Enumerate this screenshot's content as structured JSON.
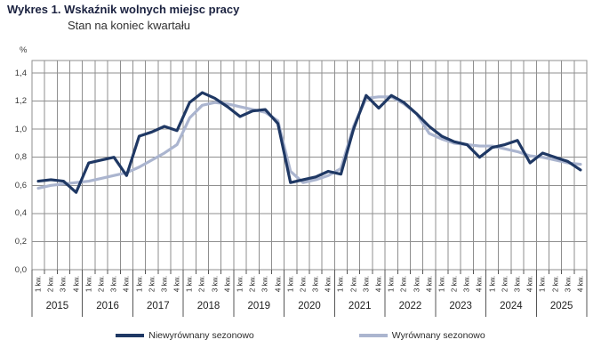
{
  "header": {
    "title": "Wykres 1. Wskaźnik wolnych miejsc pracy",
    "subtitle": "Stan na koniec kwartału"
  },
  "chart_data": {
    "type": "line",
    "unit_label": "%",
    "title": "Wykres 1. Wskaźnik wolnych miejsc pracy",
    "subtitle": "Stan na koniec kwartału",
    "ylim": [
      0,
      1.4
    ],
    "grid": true,
    "legend_position": "bottom",
    "y_ticks": [
      "0,0",
      "0,2",
      "0,4",
      "0,6",
      "0,8",
      "1,0",
      "1,2",
      "1,4"
    ],
    "years": [
      "2015",
      "2016",
      "2017",
      "2018",
      "2019",
      "2020",
      "2021",
      "2022",
      "2023",
      "2024",
      "2025"
    ],
    "quarter_labels": [
      "1 kw.",
      "2 kw.",
      "3 kw.",
      "4 kw."
    ],
    "series": [
      {
        "name": "Niewyrównany sezonowo",
        "color": "#1f3864",
        "values": [
          0.63,
          0.64,
          0.63,
          0.55,
          0.76,
          0.78,
          0.8,
          0.67,
          0.95,
          0.98,
          1.02,
          0.99,
          1.19,
          1.26,
          1.22,
          1.16,
          1.09,
          1.13,
          1.14,
          1.04,
          0.62,
          0.64,
          0.66,
          0.7,
          0.68,
          1.0,
          1.24,
          1.15,
          1.24,
          1.19,
          1.11,
          1.02,
          0.95,
          0.91,
          0.89,
          0.8,
          0.87,
          0.89,
          0.92,
          0.76,
          0.83,
          0.8,
          0.77,
          0.71
        ]
      },
      {
        "name": "Wyrównany sezonowo",
        "color": "#abb5cf",
        "values": [
          0.58,
          0.6,
          0.61,
          0.62,
          0.63,
          0.65,
          0.67,
          0.69,
          0.73,
          0.78,
          0.83,
          0.89,
          1.08,
          1.17,
          1.19,
          1.18,
          1.16,
          1.14,
          1.12,
          1.06,
          0.7,
          0.62,
          0.64,
          0.67,
          0.72,
          1.02,
          1.22,
          1.23,
          1.23,
          1.18,
          1.11,
          0.97,
          0.93,
          0.9,
          0.89,
          0.88,
          0.88,
          0.86,
          0.84,
          0.81,
          0.8,
          0.78,
          0.76,
          0.75
        ]
      }
    ]
  },
  "colors": {
    "title": "#1b2240",
    "subtitle": "#303030",
    "axis_text": "#3a3a3a",
    "grid": "#8f8f8f",
    "tick": "#555555"
  }
}
